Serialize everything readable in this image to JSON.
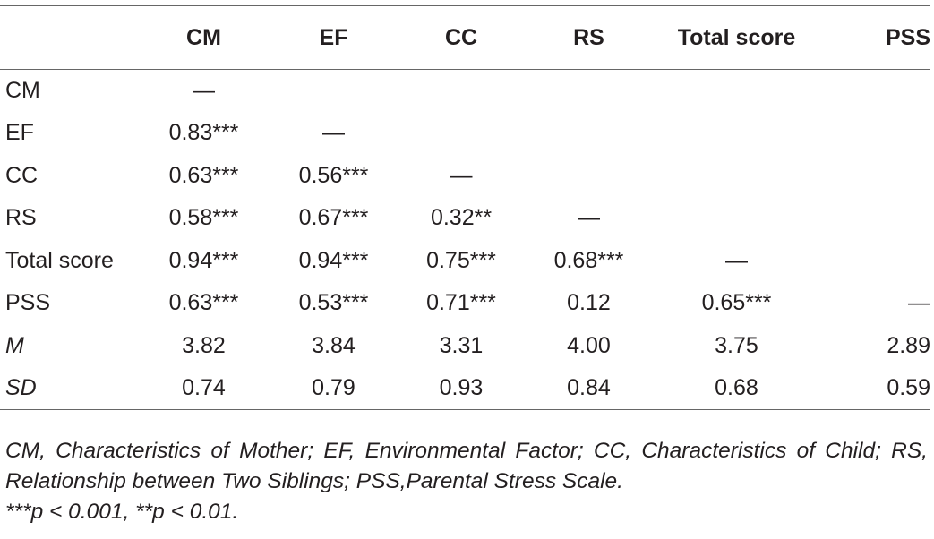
{
  "table": {
    "columns": [
      "",
      "CM",
      "EF",
      "CC",
      "RS",
      "Total score",
      "PSS"
    ],
    "rows": [
      {
        "label": "CM",
        "italic": false,
        "cells": [
          "—",
          "",
          "",
          "",
          "",
          ""
        ]
      },
      {
        "label": "EF",
        "italic": false,
        "cells": [
          "0.83***",
          "—",
          "",
          "",
          "",
          ""
        ]
      },
      {
        "label": "CC",
        "italic": false,
        "cells": [
          "0.63***",
          "0.56***",
          "—",
          "",
          "",
          ""
        ]
      },
      {
        "label": "RS",
        "italic": false,
        "cells": [
          "0.58***",
          "0.67***",
          "0.32**",
          "—",
          "",
          ""
        ]
      },
      {
        "label": "Total score",
        "italic": false,
        "cells": [
          "0.94***",
          "0.94***",
          "0.75***",
          "0.68***",
          "—",
          ""
        ]
      },
      {
        "label": "PSS",
        "italic": false,
        "cells": [
          "0.63***",
          "0.53***",
          "0.71***",
          "0.12",
          "0.65***",
          "—"
        ]
      },
      {
        "label": "M",
        "italic": true,
        "cells": [
          "3.82",
          "3.84",
          "3.31",
          "4.00",
          "3.75",
          "2.89"
        ]
      },
      {
        "label": "SD",
        "italic": true,
        "cells": [
          "0.74",
          "0.79",
          "0.93",
          "0.84",
          "0.68",
          "0.59"
        ]
      }
    ]
  },
  "notes": {
    "abbreviations": "CM, Characteristics of Mother; EF, Environmental Factor; CC, Characteristics of Child; RS, Relationship between Two Siblings; PSS,Parental Stress Scale.",
    "significance": "***p < 0.001, **p < 0.01."
  }
}
